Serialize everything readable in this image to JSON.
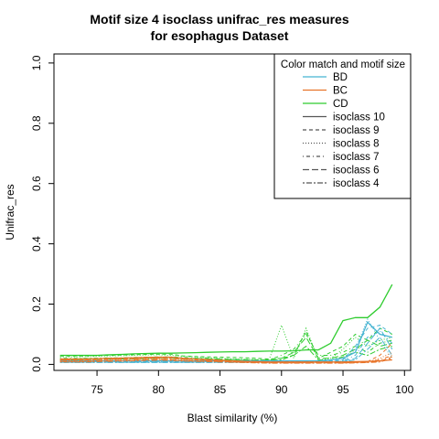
{
  "chart_data": {
    "type": "line",
    "title_line1": "Motif size 4 isoclass unifrac_res measures",
    "title_line2": "for esophagus Dataset",
    "xlabel": "Blast similarity (%)",
    "ylabel": "Unifrac_res",
    "xlim": [
      71.5,
      100.5
    ],
    "ylim": [
      -0.02,
      1.03
    ],
    "x_ticks": [
      75,
      80,
      85,
      90,
      95,
      100
    ],
    "x_tick_labels": [
      "75",
      "80",
      "85",
      "90",
      "95",
      "100"
    ],
    "y_ticks": [
      0.0,
      0.2,
      0.4,
      0.6,
      0.8,
      1.0
    ],
    "y_tick_labels": [
      "0.0",
      "0.2",
      "0.4",
      "0.6",
      "0.8",
      "1.0"
    ],
    "legend": {
      "title": "Color match and motif size",
      "position": "top-right",
      "entries": [
        {
          "label": "BD",
          "color": "#46b4d2",
          "dash": "solid"
        },
        {
          "label": "BC",
          "color": "#e8742a",
          "dash": "solid"
        },
        {
          "label": "CD",
          "color": "#2fcc2f",
          "dash": "solid"
        },
        {
          "label": "isoclass 10",
          "color": "#555555",
          "dash": "solid"
        },
        {
          "label": "isoclass 9",
          "color": "#555555",
          "dash": "dashed"
        },
        {
          "label": "isoclass 8",
          "color": "#555555",
          "dash": "dotted"
        },
        {
          "label": "isoclass 7",
          "color": "#555555",
          "dash": "dotdash"
        },
        {
          "label": "isoclass 6",
          "color": "#555555",
          "dash": "longdash"
        },
        {
          "label": "isoclass 4",
          "color": "#555555",
          "dash": "twodash"
        }
      ]
    },
    "x": [
      72,
      73,
      74,
      75,
      76,
      77,
      78,
      79,
      80,
      81,
      82,
      83,
      84,
      85,
      86,
      87,
      88,
      89,
      90,
      91,
      92,
      93,
      94,
      95,
      96,
      97,
      98,
      99
    ],
    "series": [
      {
        "group": "CD",
        "isoclass": "isoclass 10",
        "color": "#2fcc2f",
        "dash": "solid",
        "values": [
          0.03,
          0.03,
          0.03,
          0.03,
          0.032,
          0.033,
          0.035,
          0.036,
          0.037,
          0.037,
          0.038,
          0.039,
          0.04,
          0.041,
          0.042,
          0.042,
          0.043,
          0.044,
          0.044,
          0.045,
          0.048,
          0.048,
          0.07,
          0.145,
          0.155,
          0.155,
          0.19,
          0.265
        ]
      },
      {
        "group": "CD",
        "isoclass": "isoclass 9",
        "color": "#2fcc2f",
        "dash": "dashed",
        "values": [
          0.028,
          0.028,
          0.028,
          0.029,
          0.03,
          0.031,
          0.032,
          0.033,
          0.034,
          0.034,
          0.028,
          0.026,
          0.025,
          0.024,
          0.023,
          0.022,
          0.02,
          0.018,
          0.02,
          0.03,
          0.11,
          0.02,
          0.04,
          0.06,
          0.1,
          0.08,
          0.12,
          0.1
        ]
      },
      {
        "group": "CD",
        "isoclass": "isoclass 8",
        "color": "#2fcc2f",
        "dash": "dotted",
        "values": [
          0.025,
          0.025,
          0.026,
          0.027,
          0.028,
          0.029,
          0.03,
          0.031,
          0.032,
          0.03,
          0.027,
          0.025,
          0.022,
          0.02,
          0.018,
          0.017,
          0.016,
          0.016,
          0.13,
          0.02,
          0.12,
          0.015,
          0.02,
          0.05,
          0.09,
          0.06,
          0.08,
          0.09
        ]
      },
      {
        "group": "CD",
        "isoclass": "isoclass 7",
        "color": "#2fcc2f",
        "dash": "dotdash",
        "values": [
          0.02,
          0.02,
          0.02,
          0.021,
          0.022,
          0.022,
          0.023,
          0.024,
          0.025,
          0.025,
          0.023,
          0.021,
          0.02,
          0.018,
          0.017,
          0.016,
          0.015,
          0.015,
          0.03,
          0.05,
          0.1,
          0.03,
          0.03,
          0.04,
          0.06,
          0.04,
          0.07,
          0.08
        ]
      },
      {
        "group": "CD",
        "isoclass": "isoclass 6",
        "color": "#2fcc2f",
        "dash": "longdash",
        "values": [
          0.018,
          0.018,
          0.019,
          0.019,
          0.02,
          0.02,
          0.021,
          0.022,
          0.023,
          0.022,
          0.02,
          0.019,
          0.018,
          0.017,
          0.016,
          0.015,
          0.014,
          0.014,
          0.02,
          0.04,
          0.09,
          0.02,
          0.02,
          0.03,
          0.05,
          0.08,
          0.06,
          0.07
        ]
      },
      {
        "group": "CD",
        "isoclass": "isoclass 4",
        "color": "#2fcc2f",
        "dash": "twodash",
        "values": [
          0.015,
          0.015,
          0.016,
          0.016,
          0.017,
          0.018,
          0.018,
          0.019,
          0.02,
          0.02,
          0.018,
          0.017,
          0.016,
          0.015,
          0.014,
          0.013,
          0.012,
          0.012,
          0.015,
          0.03,
          0.06,
          0.015,
          0.015,
          0.025,
          0.04,
          0.03,
          0.05,
          0.06
        ]
      },
      {
        "group": "BD",
        "isoclass": "isoclass 10",
        "color": "#46b4d2",
        "dash": "solid",
        "values": [
          0.012,
          0.012,
          0.012,
          0.012,
          0.012,
          0.012,
          0.012,
          0.012,
          0.012,
          0.012,
          0.012,
          0.012,
          0.012,
          0.012,
          0.012,
          0.012,
          0.012,
          0.012,
          0.012,
          0.012,
          0.012,
          0.012,
          0.015,
          0.02,
          0.04,
          0.14,
          0.1,
          0.09
        ]
      },
      {
        "group": "BD",
        "isoclass": "isoclass 9",
        "color": "#46b4d2",
        "dash": "dashed",
        "values": [
          0.01,
          0.01,
          0.01,
          0.01,
          0.01,
          0.01,
          0.01,
          0.01,
          0.01,
          0.01,
          0.01,
          0.01,
          0.01,
          0.01,
          0.01,
          0.01,
          0.01,
          0.01,
          0.01,
          0.01,
          0.01,
          0.01,
          0.012,
          0.015,
          0.06,
          0.12,
          0.13,
          0.1
        ]
      },
      {
        "group": "BD",
        "isoclass": "isoclass 8",
        "color": "#46b4d2",
        "dash": "dotted",
        "values": [
          0.008,
          0.008,
          0.008,
          0.008,
          0.008,
          0.008,
          0.008,
          0.008,
          0.008,
          0.008,
          0.008,
          0.008,
          0.008,
          0.008,
          0.008,
          0.008,
          0.008,
          0.008,
          0.008,
          0.008,
          0.008,
          0.008,
          0.01,
          0.012,
          0.05,
          0.15,
          0.08,
          0.02
        ]
      },
      {
        "group": "BD",
        "isoclass": "isoclass 7",
        "color": "#46b4d2",
        "dash": "dotdash",
        "values": [
          0.009,
          0.009,
          0.009,
          0.009,
          0.009,
          0.009,
          0.009,
          0.009,
          0.009,
          0.009,
          0.009,
          0.009,
          0.009,
          0.009,
          0.009,
          0.009,
          0.009,
          0.009,
          0.009,
          0.009,
          0.009,
          0.009,
          0.01,
          0.012,
          0.03,
          0.09,
          0.11,
          0.07
        ]
      },
      {
        "group": "BD",
        "isoclass": "isoclass 6",
        "color": "#46b4d2",
        "dash": "longdash",
        "values": [
          0.007,
          0.007,
          0.007,
          0.007,
          0.007,
          0.007,
          0.007,
          0.007,
          0.007,
          0.007,
          0.007,
          0.007,
          0.007,
          0.007,
          0.007,
          0.007,
          0.007,
          0.007,
          0.007,
          0.007,
          0.007,
          0.007,
          0.008,
          0.01,
          0.02,
          0.07,
          0.12,
          0.05
        ]
      },
      {
        "group": "BD",
        "isoclass": "isoclass 4",
        "color": "#46b4d2",
        "dash": "twodash",
        "values": [
          0.006,
          0.006,
          0.006,
          0.006,
          0.006,
          0.006,
          0.006,
          0.006,
          0.006,
          0.006,
          0.006,
          0.006,
          0.006,
          0.006,
          0.006,
          0.006,
          0.006,
          0.006,
          0.006,
          0.006,
          0.006,
          0.006,
          0.007,
          0.009,
          0.015,
          0.05,
          0.09,
          0.03
        ]
      },
      {
        "group": "BC",
        "isoclass": "isoclass 10",
        "color": "#e8742a",
        "dash": "solid",
        "values": [
          0.018,
          0.018,
          0.018,
          0.019,
          0.02,
          0.021,
          0.022,
          0.023,
          0.024,
          0.024,
          0.02,
          0.018,
          0.016,
          0.014,
          0.012,
          0.01,
          0.009,
          0.008,
          0.008,
          0.008,
          0.008,
          0.008,
          0.008,
          0.008,
          0.009,
          0.01,
          0.012,
          0.015
        ]
      },
      {
        "group": "BC",
        "isoclass": "isoclass 9",
        "color": "#e8742a",
        "dash": "dashed",
        "values": [
          0.015,
          0.015,
          0.015,
          0.016,
          0.017,
          0.018,
          0.019,
          0.02,
          0.021,
          0.02,
          0.018,
          0.016,
          0.014,
          0.012,
          0.01,
          0.009,
          0.008,
          0.007,
          0.007,
          0.007,
          0.007,
          0.007,
          0.007,
          0.007,
          0.008,
          0.009,
          0.03,
          0.07
        ]
      },
      {
        "group": "BC",
        "isoclass": "isoclass 8",
        "color": "#e8742a",
        "dash": "dotted",
        "values": [
          0.012,
          0.012,
          0.012,
          0.013,
          0.014,
          0.015,
          0.016,
          0.017,
          0.018,
          0.017,
          0.015,
          0.013,
          0.012,
          0.01,
          0.009,
          0.008,
          0.007,
          0.006,
          0.006,
          0.006,
          0.006,
          0.006,
          0.006,
          0.006,
          0.007,
          0.008,
          0.02,
          0.04
        ]
      },
      {
        "group": "BC",
        "isoclass": "isoclass 7",
        "color": "#e8742a",
        "dash": "dotdash",
        "values": [
          0.014,
          0.014,
          0.014,
          0.015,
          0.016,
          0.017,
          0.018,
          0.019,
          0.02,
          0.019,
          0.017,
          0.015,
          0.013,
          0.011,
          0.01,
          0.009,
          0.008,
          0.007,
          0.007,
          0.007,
          0.007,
          0.007,
          0.007,
          0.007,
          0.008,
          0.009,
          0.015,
          0.03
        ]
      },
      {
        "group": "BC",
        "isoclass": "isoclass 6",
        "color": "#e8742a",
        "dash": "longdash",
        "values": [
          0.01,
          0.01,
          0.01,
          0.011,
          0.012,
          0.013,
          0.014,
          0.015,
          0.016,
          0.015,
          0.013,
          0.011,
          0.01,
          0.009,
          0.008,
          0.007,
          0.006,
          0.005,
          0.005,
          0.005,
          0.005,
          0.005,
          0.005,
          0.005,
          0.006,
          0.007,
          0.01,
          0.025
        ]
      },
      {
        "group": "BC",
        "isoclass": "isoclass 4",
        "color": "#e8742a",
        "dash": "twodash",
        "values": [
          0.008,
          0.008,
          0.008,
          0.009,
          0.01,
          0.011,
          0.012,
          0.013,
          0.014,
          0.013,
          0.011,
          0.01,
          0.009,
          0.008,
          0.007,
          0.006,
          0.005,
          0.004,
          0.004,
          0.004,
          0.004,
          0.004,
          0.004,
          0.004,
          0.005,
          0.006,
          0.008,
          0.02
        ]
      }
    ]
  }
}
